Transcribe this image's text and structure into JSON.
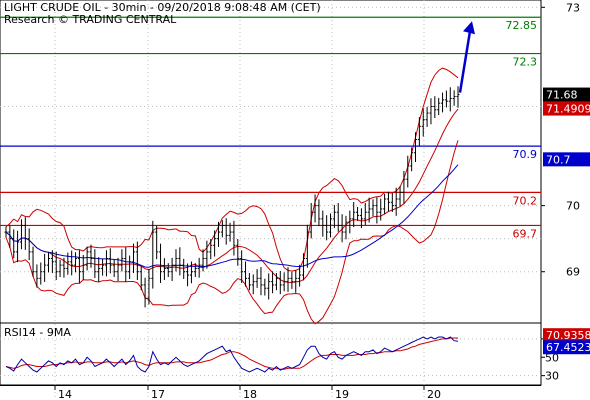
{
  "header": {
    "title": "LIGHT CRUDE OIL - 30min - 09/20/2018 9:08:48 AM (CET)",
    "subtitle": "Research © TRADING CENTRAL"
  },
  "colors": {
    "target": "#008000",
    "pivot": "#0000cc",
    "support": "#cc0000",
    "arrow": "#0000cc",
    "rsi_line": "#0000aa",
    "rsi_ma": "#cc0000",
    "price_box": "#000000",
    "ma_box": "#cc0000",
    "pivot_box": "#0000cc"
  },
  "chart_data": [
    {
      "type": "candlestick",
      "title": "LIGHT CRUDE OIL - 30min - 09/20/2018 9:08:48 AM (CET)",
      "ylim": [
        68.3,
        73.05
      ],
      "y_ticks": [
        "73",
        "70",
        "69"
      ],
      "y_tick_values": [
        73,
        70,
        69
      ],
      "x_ticks": [
        "14",
        "17",
        "18",
        "19",
        "20"
      ],
      "levels": [
        {
          "label": "72.85",
          "value": 72.85,
          "color": "#008000"
        },
        {
          "label": "72.3",
          "value": 72.3,
          "color": "#008000"
        },
        {
          "label": "70.9",
          "value": 70.9,
          "color": "#0000cc"
        },
        {
          "label": "70.2",
          "value": 70.2,
          "color": "#cc0000"
        },
        {
          "label": "69.7",
          "value": 69.7,
          "color": "#cc0000"
        }
      ],
      "current_price": "71.68",
      "ma_value": "71.4909",
      "pivot_value": "70.7",
      "close": [
        69.6,
        69.5,
        69.3,
        69.45,
        69.7,
        69.5,
        69.3,
        69.0,
        68.9,
        69.0,
        69.1,
        69.2,
        69.15,
        69.0,
        69.1,
        69.05,
        69.15,
        69.1,
        69.2,
        69.0,
        69.1,
        69.3,
        69.2,
        69.0,
        69.05,
        69.1,
        69.2,
        69.1,
        69.0,
        69.1,
        69.2,
        69.0,
        69.15,
        69.3,
        69.0,
        68.8,
        68.6,
        68.9,
        69.6,
        69.3,
        69.0,
        69.05,
        69.0,
        69.1,
        69.2,
        69.1,
        69.0,
        68.95,
        69.0,
        69.05,
        69.1,
        69.2,
        69.3,
        69.4,
        69.5,
        69.6,
        69.7,
        69.55,
        69.6,
        69.4,
        69.2,
        69.0,
        68.9,
        68.8,
        68.85,
        68.9,
        68.8,
        68.75,
        68.85,
        68.8,
        68.9,
        68.8,
        68.85,
        68.9,
        68.85,
        68.9,
        68.95,
        69.2,
        69.6,
        69.9,
        70.0,
        69.8,
        69.7,
        69.6,
        69.8,
        69.9,
        69.7,
        69.6,
        69.75,
        69.8,
        69.9,
        69.85,
        69.8,
        69.9,
        69.95,
        70.0,
        69.9,
        69.95,
        70.1,
        70.05,
        70.0,
        70.1,
        70.2,
        70.4,
        70.6,
        70.8,
        71.0,
        71.2,
        71.3,
        71.4,
        71.5,
        71.45,
        71.55,
        71.6,
        71.58,
        71.62,
        71.65,
        71.68
      ]
    },
    {
      "type": "line",
      "title": "RSI14 - 9MA",
      "ylim": [
        22,
        84
      ],
      "y_ticks": [
        "70",
        "50",
        "30"
      ],
      "y_tick_values": [
        70,
        50,
        30
      ],
      "series": [
        {
          "name": "RSI14",
          "color": "#0000aa"
        },
        {
          "name": "9MA",
          "color": "#cc0000"
        }
      ],
      "rsi_value": "67.4523",
      "rsi_ma_value": "70.9358",
      "rsi": [
        40,
        38,
        35,
        42,
        48,
        44,
        40,
        36,
        34,
        38,
        42,
        46,
        44,
        40,
        44,
        42,
        46,
        44,
        48,
        42,
        44,
        50,
        46,
        40,
        42,
        44,
        48,
        44,
        40,
        44,
        48,
        42,
        46,
        52,
        40,
        36,
        34,
        40,
        56,
        48,
        42,
        44,
        42,
        46,
        50,
        46,
        42,
        40,
        42,
        44,
        46,
        50,
        54,
        56,
        58,
        60,
        62,
        56,
        58,
        50,
        44,
        38,
        36,
        34,
        36,
        38,
        36,
        34,
        38,
        36,
        40,
        36,
        38,
        40,
        38,
        40,
        42,
        50,
        58,
        62,
        62,
        54,
        50,
        48,
        54,
        56,
        50,
        48,
        52,
        54,
        56,
        54,
        52,
        56,
        56,
        58,
        54,
        56,
        60,
        58,
        56,
        58,
        60,
        62,
        64,
        66,
        68,
        70,
        72,
        70,
        72,
        70,
        72,
        72,
        70,
        72,
        68,
        67.45
      ],
      "rsi_ma": [
        40,
        39,
        38,
        39,
        41,
        42,
        42,
        41,
        40,
        40,
        40,
        41,
        42,
        42,
        43,
        43,
        44,
        44,
        45,
        44,
        44,
        45,
        45,
        44,
        44,
        44,
        45,
        45,
        44,
        44,
        45,
        44,
        45,
        46,
        45,
        44,
        42,
        41,
        43,
        44,
        44,
        44,
        44,
        44,
        45,
        45,
        45,
        44,
        44,
        44,
        44,
        45,
        46,
        47,
        49,
        51,
        53,
        54,
        56,
        56,
        55,
        53,
        51,
        48,
        46,
        44,
        42,
        40,
        39,
        38,
        38,
        37,
        37,
        38,
        38,
        38,
        38,
        40,
        43,
        46,
        49,
        51,
        52,
        52,
        53,
        53,
        53,
        52,
        52,
        52,
        52,
        53,
        53,
        53,
        54,
        54,
        55,
        55,
        56,
        56,
        56,
        57,
        57,
        58,
        59,
        61,
        62,
        64,
        65,
        66,
        67,
        68,
        69,
        70,
        70,
        71,
        71,
        70.94
      ]
    }
  ]
}
